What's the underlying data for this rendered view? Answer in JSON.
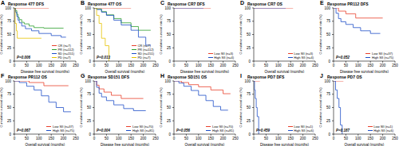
{
  "chart_data": [
    {
      "type": "step",
      "panel": "A",
      "title": "Response 477 DFS",
      "annotations": [
        "P=0.006"
      ],
      "xlabel": "Disease free survival (months)",
      "ylabel": "Cumulative survival rate (%)",
      "xlim": [
        0,
        250
      ],
      "xticks": [
        0,
        50,
        100,
        150,
        200,
        250
      ],
      "ylim": [
        0,
        100
      ],
      "yticks": [
        0,
        25,
        50,
        75,
        100
      ],
      "grid": false,
      "legend": "lower right",
      "series": [
        {
          "name": "CR (n=7)",
          "color": "#e8412c",
          "x": [
            0,
            140
          ],
          "values": [
            100,
            100
          ]
        },
        {
          "name": "PR (n=112)",
          "color": "#2ca02c",
          "x": [
            0,
            5,
            10,
            15,
            20,
            30,
            40,
            60,
            80,
            120,
            200
          ],
          "values": [
            100,
            95,
            88,
            82,
            78,
            73,
            70,
            66,
            63,
            62,
            62
          ]
        },
        {
          "name": "SD (n=151)",
          "color": "#1f4fc8",
          "x": [
            0,
            5,
            10,
            15,
            20,
            30,
            45,
            70,
            100,
            150,
            190,
            210
          ],
          "values": [
            100,
            92,
            84,
            77,
            72,
            66,
            61,
            57,
            52,
            48,
            45,
            45
          ]
        },
        {
          "name": "PD (n=7)",
          "color": "#e6c300",
          "x": [
            0,
            3,
            8,
            12,
            110
          ],
          "values": [
            100,
            71,
            57,
            43,
            43
          ]
        }
      ]
    },
    {
      "type": "step",
      "panel": "B",
      "title": "Response 477 OS",
      "annotations": [
        "P=0.013"
      ],
      "xlabel": "Overall survival (months)",
      "ylabel": "Cumulative survival rate (%)",
      "xlim": [
        0,
        250
      ],
      "xticks": [
        0,
        50,
        100,
        150,
        200,
        250
      ],
      "ylim": [
        0,
        100
      ],
      "yticks": [
        0,
        25,
        50,
        75,
        100
      ],
      "grid": false,
      "legend": "lower right",
      "series": [
        {
          "name": "CR (n=7)",
          "color": "#e8412c",
          "x": [
            0,
            150
          ],
          "values": [
            100,
            100
          ]
        },
        {
          "name": "PR (n=112)",
          "color": "#2ca02c",
          "x": [
            0,
            10,
            30,
            50,
            80,
            110,
            150,
            180,
            230
          ],
          "values": [
            100,
            98,
            93,
            87,
            80,
            72,
            65,
            58,
            58
          ]
        },
        {
          "name": "SD (n=151)",
          "color": "#1f4fc8",
          "x": [
            0,
            10,
            30,
            50,
            80,
            110,
            150,
            180,
            210,
            230
          ],
          "values": [
            100,
            97,
            92,
            86,
            77,
            68,
            58,
            45,
            30,
            30
          ]
        },
        {
          "name": "PD (n=7)",
          "color": "#e6c300",
          "x": [
            0,
            10,
            20,
            30,
            45,
            60
          ],
          "values": [
            100,
            86,
            71,
            43,
            29,
            0
          ]
        }
      ]
    },
    {
      "type": "step",
      "panel": "C",
      "title": "Response CR7 DFS",
      "annotations": [],
      "xlabel": "Disease free survival (months)",
      "ylabel": "Cumulative survival rate (%)",
      "xlim": [
        0,
        250
      ],
      "xticks": [
        0,
        50,
        100,
        150,
        200,
        250
      ],
      "ylim": [
        0,
        100
      ],
      "yticks": [
        0,
        25,
        50,
        75,
        100
      ],
      "grid": false,
      "legend": "lower right",
      "series": [
        {
          "name": "Low SII (n=3)",
          "color": "#e8412c",
          "x": [
            0,
            150
          ],
          "values": [
            100,
            100
          ]
        },
        {
          "name": "High SII (n=4)",
          "color": "#1f4fc8",
          "x": [
            0,
            120
          ],
          "values": [
            100,
            100
          ]
        }
      ]
    },
    {
      "type": "step",
      "panel": "D",
      "title": "Response CR7 OS",
      "annotations": [],
      "xlabel": "Overall survival (months)",
      "ylabel": "Cumulative survival rate (%)",
      "xlim": [
        0,
        250
      ],
      "xticks": [
        0,
        50,
        100,
        150,
        200,
        250
      ],
      "ylim": [
        0,
        100
      ],
      "yticks": [
        0,
        25,
        50,
        75,
        100
      ],
      "grid": false,
      "legend": "lower right",
      "series": [
        {
          "name": "Low SII (n=3)",
          "color": "#e8412c",
          "x": [
            0,
            160
          ],
          "values": [
            100,
            100
          ]
        },
        {
          "name": "High SII (n=4)",
          "color": "#1f4fc8",
          "x": [
            0,
            130
          ],
          "values": [
            100,
            100
          ]
        }
      ]
    },
    {
      "type": "step",
      "panel": "E",
      "title": "Response PR112 DFS",
      "annotations": [
        "P=0.052"
      ],
      "xlabel": "Disease free survival (months)",
      "ylabel": "Cumulative survival rate (%)",
      "xlim": [
        0,
        250
      ],
      "xticks": [
        0,
        50,
        100,
        150,
        200,
        250
      ],
      "ylim": [
        0,
        100
      ],
      "yticks": [
        0,
        25,
        50,
        75,
        100
      ],
      "grid": false,
      "legend": "lower right",
      "series": [
        {
          "name": "Low SII (n=37)",
          "color": "#e8412c",
          "x": [
            0,
            20,
            50,
            90,
            200
          ],
          "values": [
            100,
            94,
            89,
            81,
            81
          ]
        },
        {
          "name": "High SII (n=75)",
          "color": "#1f4fc8",
          "x": [
            0,
            10,
            20,
            30,
            50,
            80,
            110,
            150,
            190
          ],
          "values": [
            100,
            90,
            80,
            74,
            69,
            63,
            57,
            52,
            52
          ]
        }
      ]
    },
    {
      "type": "step",
      "panel": "F",
      "title": "Response PR112 OS",
      "annotations": [
        "P=0.067"
      ],
      "xlabel": "Overall survival (months)",
      "ylabel": "Cumulative survival rate (%)",
      "xlim": [
        0,
        250
      ],
      "xticks": [
        0,
        50,
        100,
        150,
        200,
        250
      ],
      "ylim": [
        0,
        100
      ],
      "yticks": [
        0,
        25,
        50,
        75,
        100
      ],
      "grid": false,
      "legend": "lower right",
      "series": [
        {
          "name": "Low SII (n=37)",
          "color": "#e8412c",
          "x": [
            0,
            60,
            120,
            220
          ],
          "values": [
            100,
            97,
            91,
            91
          ]
        },
        {
          "name": "High SII (n=75)",
          "color": "#1f4fc8",
          "x": [
            0,
            20,
            50,
            80,
            110,
            140,
            170,
            200,
            230
          ],
          "values": [
            100,
            97,
            90,
            83,
            72,
            60,
            50,
            42,
            42
          ]
        }
      ]
    },
    {
      "type": "step",
      "panel": "G",
      "title": "Response SD151 DFS",
      "annotations": [
        "P=0.004"
      ],
      "xlabel": "Disease free survival (months)",
      "ylabel": "Cumulative survival rate (%)",
      "xlim": [
        0,
        250
      ],
      "xticks": [
        0,
        50,
        100,
        150,
        200,
        250
      ],
      "ylim": [
        0,
        100
      ],
      "yticks": [
        0,
        25,
        50,
        75,
        100
      ],
      "grid": false,
      "legend": "lower right",
      "series": [
        {
          "name": "Low SII (n=70)",
          "color": "#e8412c",
          "x": [
            0,
            10,
            20,
            40,
            70,
            110,
            200
          ],
          "values": [
            100,
            92,
            85,
            79,
            73,
            67,
            67
          ]
        },
        {
          "name": "High SII (n=81)",
          "color": "#1f4fc8",
          "x": [
            0,
            10,
            20,
            30,
            50,
            80,
            120,
            160,
            210
          ],
          "values": [
            100,
            88,
            77,
            70,
            63,
            55,
            48,
            44,
            44
          ]
        }
      ]
    },
    {
      "type": "step",
      "panel": "H",
      "title": "Response SD151 OS",
      "annotations": [
        "P=0.056"
      ],
      "xlabel": "Overall survival (months)",
      "ylabel": "Cumulative survival rate (%)",
      "xlim": [
        0,
        250
      ],
      "xticks": [
        0,
        50,
        100,
        150,
        200,
        250
      ],
      "ylim": [
        0,
        100
      ],
      "yticks": [
        0,
        25,
        50,
        75,
        100
      ],
      "grid": false,
      "legend": "lower right",
      "series": [
        {
          "name": "Low SII (n=70)",
          "color": "#e8412c",
          "x": [
            0,
            30,
            60,
            100,
            150,
            200,
            230
          ],
          "values": [
            100,
            97,
            93,
            89,
            83,
            76,
            76
          ]
        },
        {
          "name": "High SII (n=81)",
          "color": "#1f4fc8",
          "x": [
            0,
            20,
            40,
            70,
            100,
            130,
            160,
            190,
            220
          ],
          "values": [
            100,
            96,
            90,
            82,
            73,
            63,
            52,
            45,
            45
          ]
        }
      ]
    },
    {
      "type": "step",
      "panel": "I",
      "title": "Response PD7 DFS",
      "annotations": [
        "P=0.459"
      ],
      "xlabel": "Disease free survival (months)",
      "ylabel": "Cumulative survival rate (%)",
      "xlim": [
        0,
        250
      ],
      "xticks": [
        0,
        50,
        100,
        150,
        200,
        250
      ],
      "ylim": [
        0,
        100
      ],
      "yticks": [
        0,
        25,
        50,
        75,
        100
      ],
      "grid": false,
      "legend": "lower right",
      "series": [
        {
          "name": "Low SII (n=1)",
          "color": "#e8412c",
          "x": [
            0,
            25
          ],
          "values": [
            100,
            100
          ]
        },
        {
          "name": "High SII (n=6)",
          "color": "#1f4fc8",
          "x": [
            0,
            3,
            6,
            10,
            14,
            20
          ],
          "values": [
            100,
            83,
            67,
            50,
            33,
            0
          ]
        }
      ]
    },
    {
      "type": "step",
      "panel": "J",
      "title": "Response PD7 OS",
      "annotations": [
        "P=0.187"
      ],
      "xlabel": "Overall survival (months)",
      "ylabel": "Cumulative survival rate (%)",
      "xlim": [
        0,
        250
      ],
      "xticks": [
        0,
        50,
        100,
        150,
        200,
        250
      ],
      "ylim": [
        0,
        100
      ],
      "yticks": [
        0,
        25,
        50,
        75,
        100
      ],
      "grid": false,
      "legend": "lower right",
      "series": [
        {
          "name": "Low SII (n=1)",
          "color": "#e8412c",
          "x": [
            0,
            40
          ],
          "values": [
            100,
            100
          ]
        },
        {
          "name": "High SII (n=6)",
          "color": "#1f4fc8",
          "x": [
            0,
            8,
            15,
            22,
            28,
            35
          ],
          "values": [
            100,
            83,
            67,
            50,
            17,
            0
          ]
        }
      ]
    }
  ]
}
